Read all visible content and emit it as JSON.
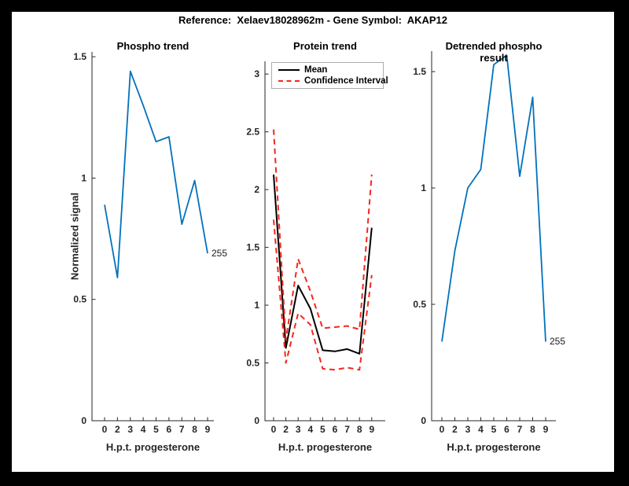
{
  "figure_title": "Reference:  Xelaev18028962m - Gene Symbol:  AKAP12",
  "colors": {
    "line_blue": "#0072BD",
    "ci_red": "#F2281E",
    "mean_black": "#000000",
    "axis": "#262626",
    "legend_border": "#ABABAB"
  },
  "chart_data": [
    {
      "type": "line",
      "title": "Phospho trend",
      "xlabel": "H.p.t. progesterone",
      "ylabel": "Normalized signal",
      "x_tick_labels": [
        "0",
        "2",
        "3",
        "4",
        "5",
        "6",
        "7",
        "8",
        "9"
      ],
      "y_tick_labels": [
        "0",
        "0.5",
        "1",
        "1.5"
      ],
      "y_tick_values": [
        0,
        0.5,
        1,
        1.5
      ],
      "ylim": [
        0,
        1.52
      ],
      "grid": false,
      "legend_position": "none",
      "series": [
        {
          "name": "phospho-signal",
          "color": "line_blue",
          "dashed": false,
          "width": 1.8,
          "values": [
            0.89,
            0.59,
            1.44,
            1.3,
            1.15,
            1.17,
            0.81,
            0.99,
            0.69
          ]
        }
      ],
      "end_point_label": "255"
    },
    {
      "type": "line",
      "title": "Protein trend",
      "xlabel": "H.p.t. progesterone",
      "ylabel": "",
      "x_tick_labels": [
        "0",
        "2",
        "3",
        "4",
        "5",
        "6",
        "7",
        "8",
        "9"
      ],
      "y_tick_labels": [
        "0",
        "0.5",
        "1",
        "1.5",
        "2",
        "2.5",
        "3"
      ],
      "y_tick_values": [
        0,
        0.5,
        1,
        1.5,
        2,
        2.5,
        3
      ],
      "ylim": [
        0,
        3.11
      ],
      "grid": false,
      "legend_position": "top-left",
      "legend": {
        "entries": [
          {
            "label": "Mean",
            "color": "mean_black",
            "dashed": false
          },
          {
            "label": "Confidence Interval",
            "color": "ci_red",
            "dashed": true
          }
        ]
      },
      "series": [
        {
          "name": "mean",
          "color": "mean_black",
          "dashed": false,
          "width": 2,
          "values": [
            2.13,
            0.63,
            1.17,
            0.97,
            0.61,
            0.6,
            0.62,
            0.58,
            1.67
          ]
        },
        {
          "name": "ci-upper",
          "color": "ci_red",
          "dashed": true,
          "width": 2,
          "values": [
            2.52,
            0.7,
            1.4,
            1.12,
            0.8,
            0.81,
            0.82,
            0.79,
            2.13
          ]
        },
        {
          "name": "ci-lower",
          "color": "ci_red",
          "dashed": true,
          "width": 2,
          "values": [
            1.74,
            0.5,
            0.93,
            0.83,
            0.45,
            0.44,
            0.46,
            0.44,
            1.26
          ]
        }
      ]
    },
    {
      "type": "line",
      "title": "Detrended phospho result",
      "xlabel": "H.p.t. progesterone",
      "ylabel": "",
      "x_tick_labels": [
        "0",
        "2",
        "3",
        "4",
        "5",
        "6",
        "7",
        "8",
        "9"
      ],
      "y_tick_labels": [
        "0",
        "0.5",
        "1",
        "1.5"
      ],
      "y_tick_values": [
        0,
        0.5,
        1,
        1.5
      ],
      "ylim": [
        0,
        1.588
      ],
      "grid": false,
      "legend_position": "none",
      "series": [
        {
          "name": "detrended-phospho",
          "color": "line_blue",
          "dashed": false,
          "width": 1.8,
          "values": [
            0.34,
            0.73,
            1.0,
            1.08,
            1.53,
            1.57,
            1.05,
            1.39,
            0.34
          ]
        }
      ],
      "end_point_label": "255"
    }
  ]
}
